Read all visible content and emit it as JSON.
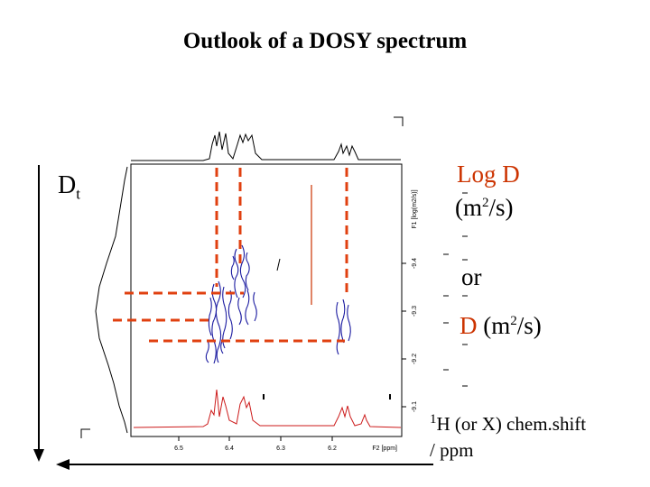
{
  "title": "Outlook of a DOSY spectrum",
  "dt_label": {
    "main": "D",
    "sub": "t"
  },
  "right_labels": {
    "logd": "Log D",
    "logd_units_pre": "(m",
    "logd_units_sup": "2",
    "logd_units_post": "/s)",
    "or": "or",
    "d_main": "D",
    "d_units_pre": "(m",
    "d_units_sup": "2",
    "d_units_post": "/s)"
  },
  "xaxis_caption": {
    "sup": "1",
    "line1": "H (or X) chem.shift",
    "line2": "/ ppm"
  },
  "spectrum": {
    "f1_axis_label": "F1 [log(m2/s)]",
    "f1_ticks": [
      "-9.4",
      "-9.3",
      "-9.2",
      "-9.1"
    ],
    "f2_ticks": [
      "6.5",
      "6.4",
      "6.3",
      "6.2"
    ],
    "f2_axis_label": "F2 [ppm]"
  },
  "colors": {
    "dashed": "#e04010",
    "contour": "#1a1aa0",
    "projection": "#cc1a1a",
    "label_red": "#cc3300"
  }
}
